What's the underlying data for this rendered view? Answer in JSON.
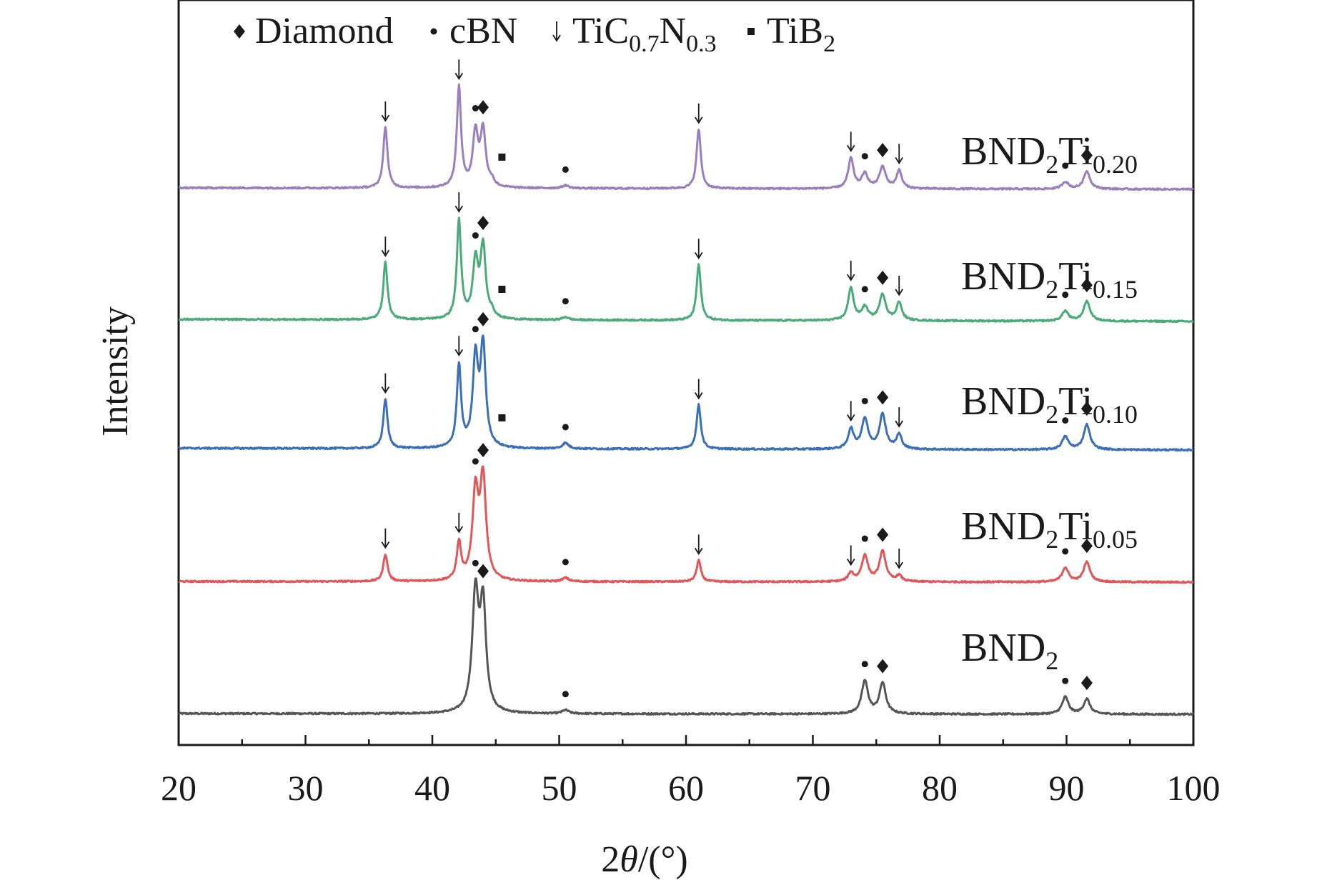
{
  "chart_data": {
    "type": "line",
    "title": "",
    "xlabel": "2θ/(°)",
    "ylabel": "Intensity",
    "xlim": [
      20,
      100
    ],
    "xticks": [
      20,
      30,
      40,
      50,
      60,
      70,
      80,
      90,
      100
    ],
    "legend": [
      {
        "marker": "diamond",
        "symbol": "♦",
        "label": "Diamond"
      },
      {
        "marker": "circle",
        "symbol": "•",
        "label": "cBN"
      },
      {
        "marker": "arrow",
        "symbol": "↓",
        "label": "TiC",
        "sub1": "0.7",
        "mid": "N",
        "sub2": "0.3"
      },
      {
        "marker": "square",
        "symbol": "■",
        "label": "TiB",
        "sub1": "2"
      }
    ],
    "series": [
      {
        "name": "BND2",
        "base": "BND",
        "sub1": "2",
        "mid": "",
        "sub2": "",
        "color": "#555555",
        "baseline": 0,
        "slope": 0.1,
        "peaks": [
          [
            43.4,
            163,
            0.3
          ],
          [
            44.0,
            145,
            0.28
          ],
          [
            50.5,
            5,
            0.3
          ],
          [
            74.1,
            46,
            0.3
          ],
          [
            75.5,
            43,
            0.3
          ],
          [
            89.9,
            24,
            0.3
          ],
          [
            91.6,
            21,
            0.3
          ]
        ]
      },
      {
        "name": "BND2Ti0.05",
        "base": "BND",
        "sub1": "2",
        "mid": "Ti",
        "sub2": "0.05",
        "color": "#e15759",
        "baseline": 0,
        "slope": 0.1,
        "peaks": [
          [
            36.3,
            38,
            0.2
          ],
          [
            42.1,
            52,
            0.2
          ],
          [
            43.4,
            120,
            0.28
          ],
          [
            44.0,
            140,
            0.28
          ],
          [
            50.5,
            5,
            0.3
          ],
          [
            61.0,
            30,
            0.2
          ],
          [
            73.0,
            12,
            0.25
          ],
          [
            74.1,
            36,
            0.3
          ],
          [
            75.5,
            42,
            0.3
          ],
          [
            76.8,
            8,
            0.25
          ],
          [
            89.9,
            20,
            0.3
          ],
          [
            91.6,
            28,
            0.3
          ]
        ]
      },
      {
        "name": "BND2Ti0.10",
        "base": "BND",
        "sub1": "2",
        "mid": "Ti",
        "sub2": "0.10",
        "color": "#3b6fb6",
        "baseline": 0,
        "slope": 0.25,
        "peaks": [
          [
            36.3,
            69,
            0.2
          ],
          [
            42.1,
            115,
            0.2
          ],
          [
            43.4,
            122,
            0.25
          ],
          [
            44.0,
            140,
            0.25
          ],
          [
            50.5,
            8,
            0.3
          ],
          [
            61.0,
            62,
            0.2
          ],
          [
            73.0,
            28,
            0.25
          ],
          [
            74.1,
            42,
            0.3
          ],
          [
            75.5,
            48,
            0.3
          ],
          [
            76.8,
            20,
            0.25
          ],
          [
            89.9,
            18,
            0.3
          ],
          [
            91.6,
            35,
            0.3
          ]
        ]
      },
      {
        "name": "BND2Ti0.15",
        "base": "BND",
        "sub1": "2",
        "mid": "Ti",
        "sub2": "0.15",
        "color": "#4aab78",
        "baseline": 0,
        "slope": 0.3,
        "peaks": [
          [
            36.3,
            80,
            0.2
          ],
          [
            42.1,
            138,
            0.2
          ],
          [
            43.4,
            78,
            0.25
          ],
          [
            44.0,
            100,
            0.25
          ],
          [
            44.7,
            8,
            0.2
          ],
          [
            50.5,
            4,
            0.3
          ],
          [
            61.0,
            78,
            0.2
          ],
          [
            73.0,
            46,
            0.25
          ],
          [
            74.1,
            18,
            0.3
          ],
          [
            75.5,
            36,
            0.3
          ],
          [
            76.8,
            25,
            0.25
          ],
          [
            89.9,
            14,
            0.3
          ],
          [
            91.6,
            28,
            0.3
          ]
        ]
      },
      {
        "name": "BND2Ti0.20",
        "base": "BND",
        "sub1": "2",
        "mid": "Ti",
        "sub2": "0.20",
        "color": "#9a7fbf",
        "baseline": 0,
        "slope": 0.2,
        "peaks": [
          [
            36.3,
            85,
            0.2
          ],
          [
            42.1,
            140,
            0.2
          ],
          [
            43.4,
            75,
            0.25
          ],
          [
            44.0,
            78,
            0.25
          ],
          [
            44.7,
            8,
            0.2
          ],
          [
            50.5,
            4,
            0.3
          ],
          [
            61.0,
            83,
            0.2
          ],
          [
            73.0,
            42,
            0.25
          ],
          [
            74.1,
            20,
            0.3
          ],
          [
            75.5,
            30,
            0.3
          ],
          [
            76.8,
            25,
            0.25
          ],
          [
            89.9,
            10,
            0.3
          ],
          [
            91.6,
            25,
            0.3
          ]
        ]
      }
    ],
    "annotations": [
      {
        "series": "BND2",
        "marks": [
          [
            43.4,
            "circle"
          ],
          [
            44.0,
            "diamond"
          ],
          [
            50.5,
            "circle"
          ],
          [
            74.1,
            "circle"
          ],
          [
            75.5,
            "diamond"
          ],
          [
            89.9,
            "circle"
          ],
          [
            91.6,
            "diamond"
          ]
        ]
      },
      {
        "series": "BND2Ti0.05",
        "marks": [
          [
            36.3,
            "arrow"
          ],
          [
            42.1,
            "arrow"
          ],
          [
            43.4,
            "circle"
          ],
          [
            44.0,
            "diamond"
          ],
          [
            50.5,
            "circle"
          ],
          [
            61.0,
            "arrow"
          ],
          [
            73.0,
            "arrow"
          ],
          [
            74.1,
            "circle"
          ],
          [
            75.5,
            "diamond"
          ],
          [
            76.8,
            "arrow"
          ],
          [
            89.9,
            "circle"
          ],
          [
            91.6,
            "diamond"
          ]
        ]
      },
      {
        "series": "BND2Ti0.10",
        "marks": [
          [
            36.3,
            "arrow"
          ],
          [
            42.1,
            "arrow"
          ],
          [
            43.4,
            "circle"
          ],
          [
            44.0,
            "diamond"
          ],
          [
            44.7,
            "square"
          ],
          [
            50.5,
            "circle"
          ],
          [
            61.0,
            "arrow"
          ],
          [
            73.0,
            "arrow"
          ],
          [
            74.1,
            "circle"
          ],
          [
            75.5,
            "diamond"
          ],
          [
            76.8,
            "arrow"
          ],
          [
            89.9,
            "circle"
          ],
          [
            91.6,
            "diamond"
          ]
        ]
      },
      {
        "series": "BND2Ti0.15",
        "marks": [
          [
            36.3,
            "arrow"
          ],
          [
            42.1,
            "arrow"
          ],
          [
            43.4,
            "circle"
          ],
          [
            44.0,
            "diamond"
          ],
          [
            44.7,
            "square"
          ],
          [
            50.5,
            "circle"
          ],
          [
            61.0,
            "arrow"
          ],
          [
            73.0,
            "arrow"
          ],
          [
            74.1,
            "circle"
          ],
          [
            75.5,
            "diamond"
          ],
          [
            76.8,
            "arrow"
          ],
          [
            89.9,
            "circle"
          ],
          [
            91.6,
            "diamond"
          ]
        ]
      },
      {
        "series": "BND2Ti0.20",
        "marks": [
          [
            36.3,
            "arrow"
          ],
          [
            42.1,
            "arrow"
          ],
          [
            43.4,
            "circle"
          ],
          [
            44.0,
            "diamond"
          ],
          [
            44.7,
            "square"
          ],
          [
            50.5,
            "circle"
          ],
          [
            61.0,
            "arrow"
          ],
          [
            73.0,
            "arrow"
          ],
          [
            74.1,
            "circle"
          ],
          [
            75.5,
            "diamond"
          ],
          [
            76.8,
            "arrow"
          ],
          [
            89.9,
            "circle"
          ],
          [
            91.6,
            "diamond"
          ]
        ]
      }
    ]
  }
}
